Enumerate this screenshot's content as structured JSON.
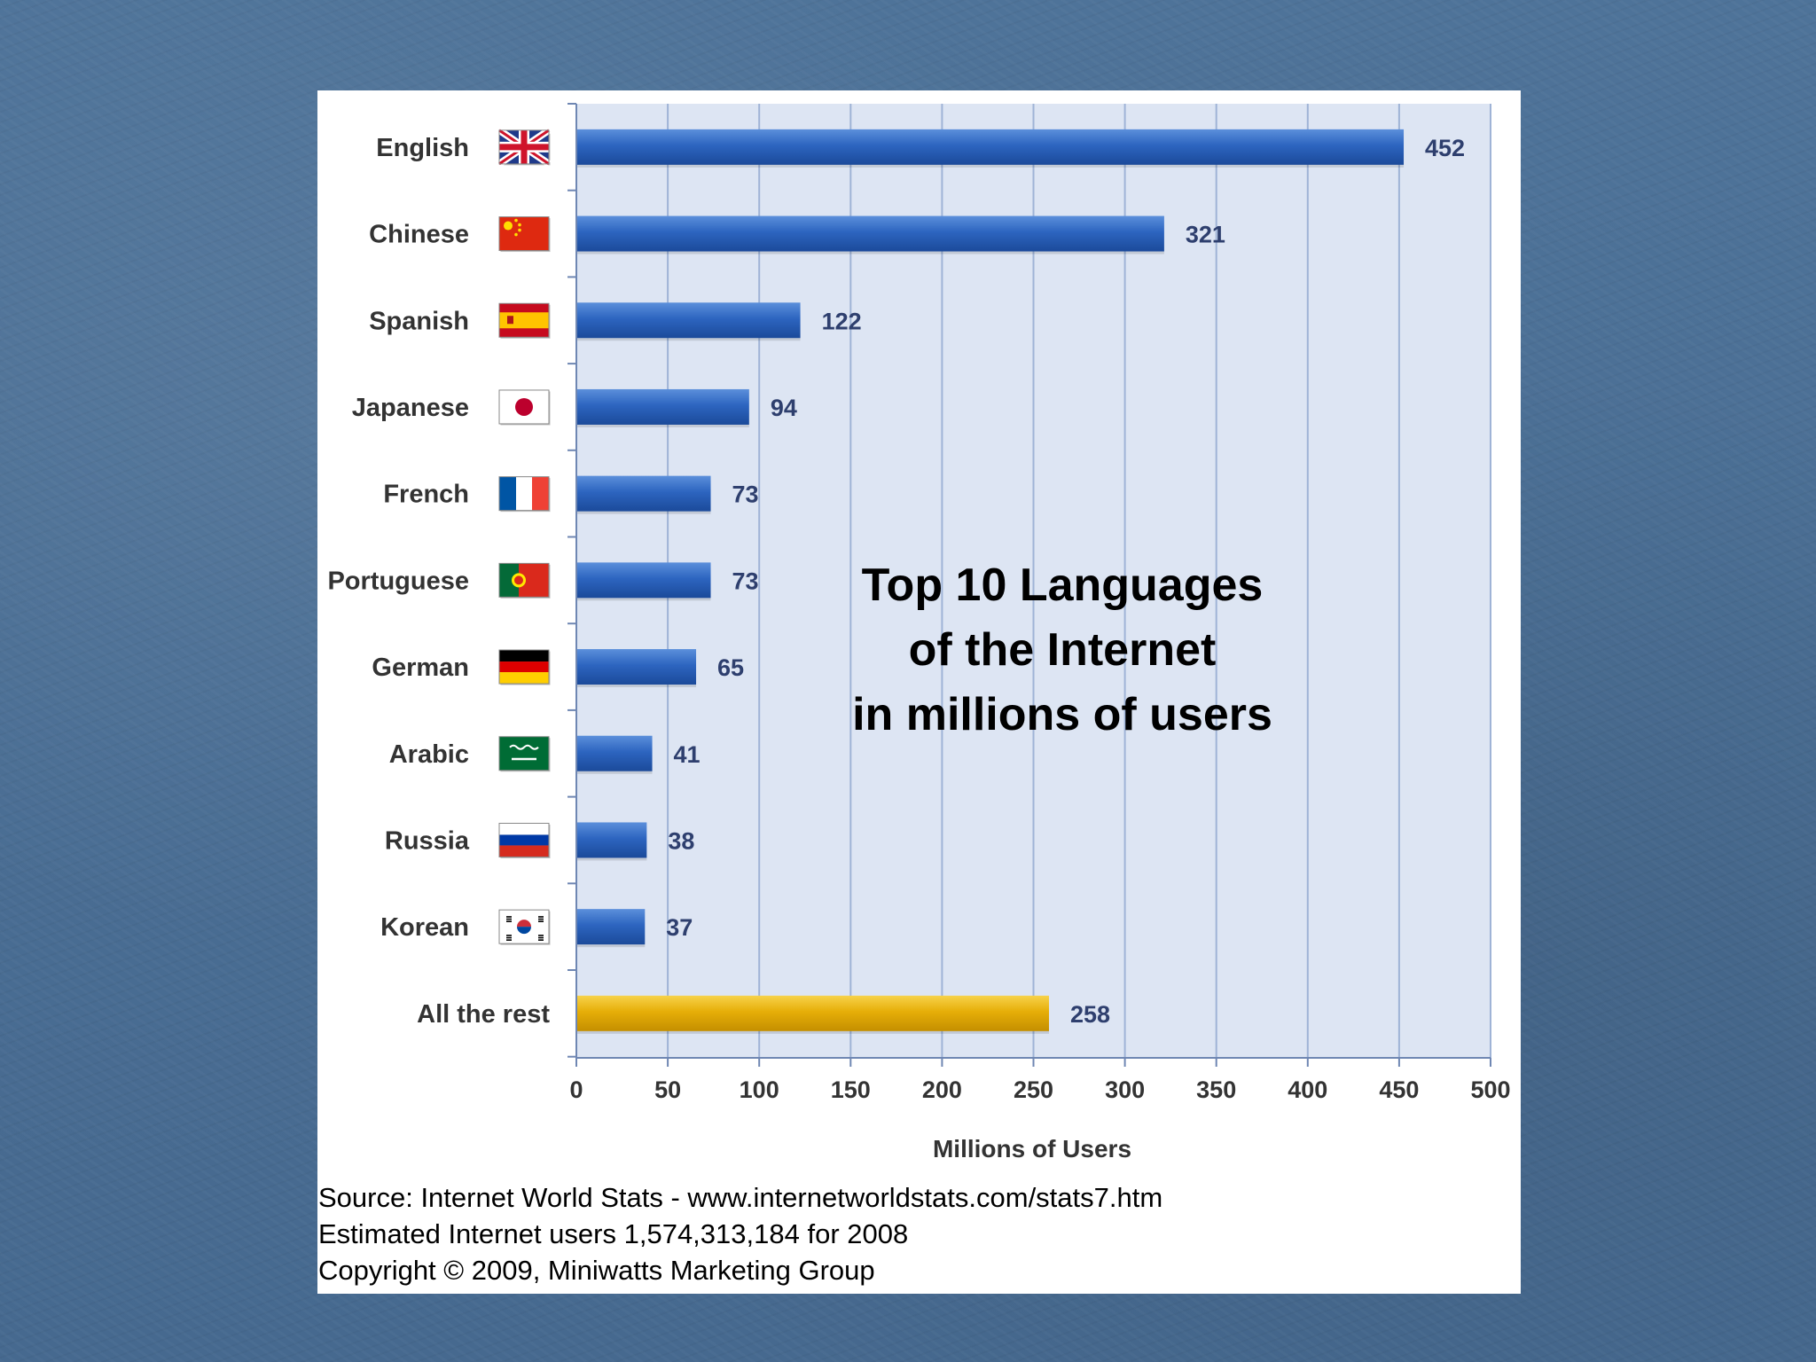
{
  "chart_data": {
    "type": "bar",
    "orientation": "horizontal",
    "title_lines": [
      "Top 10 Languages",
      "of the Internet",
      "in millions of users"
    ],
    "xlabel": "Millions of Users",
    "ylabel": "",
    "xlim": [
      0,
      500
    ],
    "x_ticks": [
      0,
      50,
      100,
      150,
      200,
      250,
      300,
      350,
      400,
      450,
      500
    ],
    "grid": true,
    "categories": [
      "English",
      "Chinese",
      "Spanish",
      "Japanese",
      "French",
      "Portuguese",
      "German",
      "Arabic",
      "Russia",
      "Korean",
      "All the rest"
    ],
    "values": [
      452,
      321,
      122,
      94,
      73,
      73,
      65,
      41,
      38,
      37,
      258
    ],
    "flags": [
      "uk-flag-icon",
      "china-flag-icon",
      "spain-flag-icon",
      "japan-flag-icon",
      "france-flag-icon",
      "portugal-flag-icon",
      "germany-flag-icon",
      "saudi-arabia-flag-icon",
      "russia-flag-icon",
      "korea-flag-icon",
      ""
    ],
    "bar_colors": {
      "main": "#2b62b8",
      "rest": "#e3ae08"
    },
    "plot_background": "#dde5f3",
    "gridline_color": "#9fb3d6"
  },
  "footer": {
    "source": "Source: Internet World Stats - www.internetworldstats.com/stats7.htm",
    "estimate": "Estimated Internet users 1,574,313,184 for 2008",
    "copyright": "Copyright © 2009, Miniwatts Marketing Group"
  }
}
